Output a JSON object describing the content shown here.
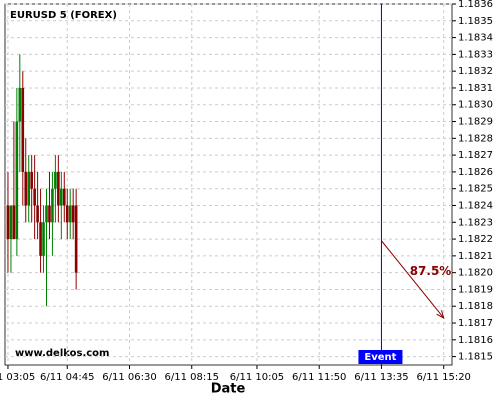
{
  "chart_data": {
    "type": "candlestick",
    "title": "EURUSD 5 (FOREX)",
    "xlabel": "Date",
    "watermark": "www.delkos.com",
    "x": [
      "6/11 03:05",
      "6/11 03:10",
      "6/11 03:15",
      "6/11 03:20",
      "6/11 03:25",
      "6/11 03:30",
      "6/11 03:35",
      "6/11 03:40",
      "6/11 03:45",
      "6/11 03:50",
      "6/11 03:55",
      "6/11 04:00",
      "6/11 04:05",
      "6/11 04:10",
      "6/11 04:15",
      "6/11 04:20",
      "6/11 04:25",
      "6/11 04:30",
      "6/11 04:35",
      "6/11 04:40",
      "6/11 04:45",
      "6/11 04:50",
      "6/11 04:55",
      "6/11 05:00"
    ],
    "open": [
      1.1824,
      1.1822,
      1.1824,
      1.1822,
      1.1829,
      1.1831,
      1.1826,
      1.1824,
      1.1826,
      1.1825,
      1.1824,
      1.1823,
      1.1821,
      1.1823,
      1.1824,
      1.1823,
      1.1825,
      1.1826,
      1.1824,
      1.1825,
      1.1824,
      1.1823,
      1.1824,
      1.1824
    ],
    "high": [
      1.1826,
      1.1824,
      1.1829,
      1.1831,
      1.1833,
      1.1832,
      1.1828,
      1.1827,
      1.1827,
      1.1827,
      1.1826,
      1.1825,
      1.1824,
      1.1825,
      1.1826,
      1.1826,
      1.1827,
      1.1827,
      1.1826,
      1.1826,
      1.1825,
      1.1825,
      1.1825,
      1.1825
    ],
    "low": [
      1.182,
      1.182,
      1.1822,
      1.1821,
      1.1826,
      1.1824,
      1.1823,
      1.1823,
      1.1823,
      1.1822,
      1.1822,
      1.182,
      1.182,
      1.1818,
      1.1822,
      1.1821,
      1.1823,
      1.1823,
      1.1822,
      1.1823,
      1.1822,
      1.1822,
      1.1822,
      1.1819
    ],
    "close": [
      1.1822,
      1.1824,
      1.1822,
      1.1829,
      1.1831,
      1.1826,
      1.1824,
      1.1826,
      1.1825,
      1.1824,
      1.1823,
      1.1821,
      1.1823,
      1.1824,
      1.1823,
      1.1825,
      1.1826,
      1.1824,
      1.1825,
      1.1824,
      1.1823,
      1.1824,
      1.1823,
      1.182
    ],
    "up_color": "#008000",
    "down_color": "#8b0000",
    "xlim": [
      "6/11 03:00",
      "6/11 15:34"
    ],
    "xticks": [
      "6/11 03:05",
      "6/11 04:45",
      "6/11 06:30",
      "6/11 08:15",
      "6/11 10:05",
      "6/11 11:50",
      "6/11 13:35",
      "6/11 15:20"
    ],
    "ylim": [
      1.18145,
      1.1836
    ],
    "yticks": [
      1.1815,
      1.1816,
      1.1817,
      1.1818,
      1.1819,
      {
        "value": 1.182,
        "label": "1.1820"
      },
      1.1821,
      1.1822,
      1.1823,
      1.1824,
      1.1825,
      1.1826,
      1.1827,
      1.1828,
      1.1829,
      {
        "value": 1.183,
        "label": "1.1830"
      },
      1.1831,
      1.1832,
      1.1833,
      1.1834,
      1.1835,
      1.1836
    ],
    "grid": true,
    "event": {
      "x": "6/11 13:35",
      "label": "Event",
      "color": "#0000ff"
    },
    "forecast": {
      "x": [
        "6/11 13:35",
        "6/11 15:20"
      ],
      "values": [
        1.18219,
        1.18173
      ],
      "label": "87.5%",
      "color": "#8b0000"
    }
  }
}
